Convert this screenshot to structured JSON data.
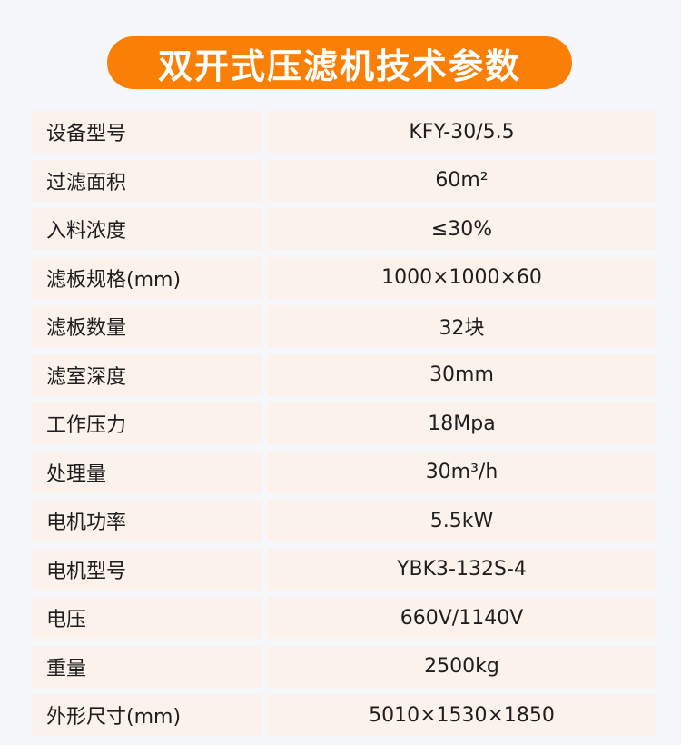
{
  "title": "双开式压滤机技术参数",
  "colors": {
    "accent": "#fa7f06",
    "cell_bg": "#fcf2ec"
  },
  "rows": [
    {
      "label": "设备型号",
      "value": "KFY-30/5.5"
    },
    {
      "label": "过滤面积",
      "value": "60m²"
    },
    {
      "label": "入料浓度",
      "value": "≤30%"
    },
    {
      "label": "滤板规格(mm)",
      "value": "1000×1000×60"
    },
    {
      "label": "滤板数量",
      "value": "32块"
    },
    {
      "label": "滤室深度",
      "value": "30mm"
    },
    {
      "label": "工作压力",
      "value": "18Mpa"
    },
    {
      "label": "处理量",
      "value": "30m³/h"
    },
    {
      "label": "电机功率",
      "value": "5.5kW"
    },
    {
      "label": "电机型号",
      "value": "YBK3-132S-4"
    },
    {
      "label": "电压",
      "value": "660V/1140V"
    },
    {
      "label": "重量",
      "value": "2500kg"
    },
    {
      "label": "外形尺寸(mm)",
      "value": "5010×1530×1850"
    }
  ]
}
